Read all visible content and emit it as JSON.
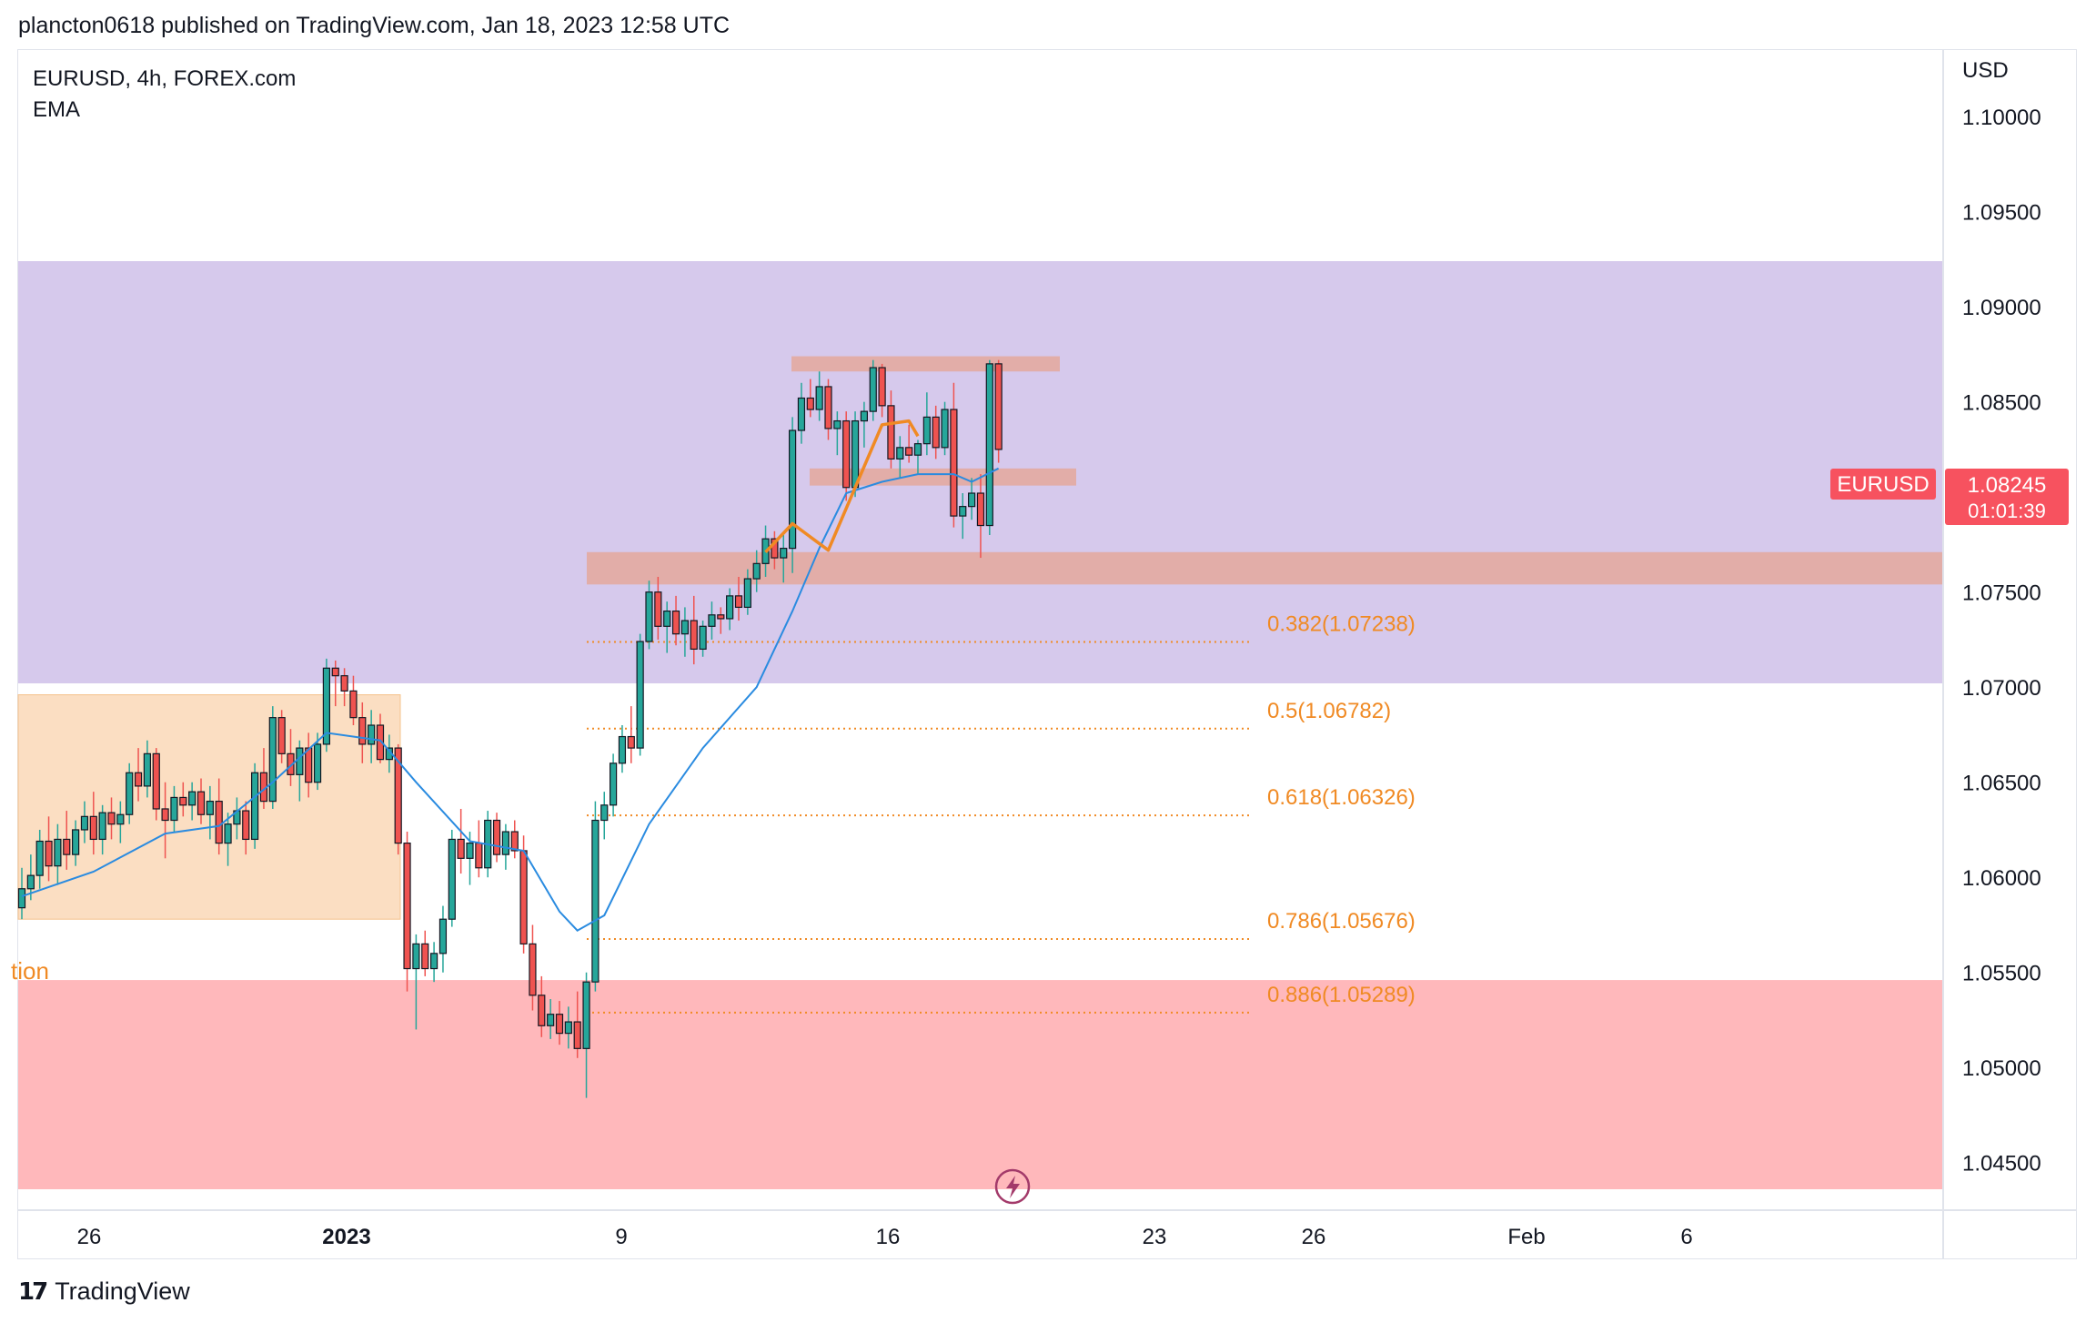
{
  "header": {
    "published": "plancton0618 published on TradingView.com, Jan 18, 2023 12:58 UTC"
  },
  "legend": {
    "symbol": "EURUSD, 4h, FOREX.com",
    "indicator": "EMA"
  },
  "price_axis": {
    "currency": "USD",
    "ticks": [
      "1.10000",
      "1.09500",
      "1.09000",
      "1.08500",
      "1.08000",
      "1.07500",
      "1.07000",
      "1.06500",
      "1.06000",
      "1.05500",
      "1.05000",
      "1.04500"
    ]
  },
  "time_axis": {
    "ticks": [
      {
        "label": "26",
        "bold": false
      },
      {
        "label": "2023",
        "bold": true
      },
      {
        "label": "9",
        "bold": false
      },
      {
        "label": "16",
        "bold": false
      },
      {
        "label": "23",
        "bold": false
      },
      {
        "label": "26",
        "bold": false
      },
      {
        "label": "Feb",
        "bold": false
      },
      {
        "label": "6",
        "bold": false
      }
    ]
  },
  "last_price": {
    "symbol_label": "EURUSD",
    "price": "1.08245",
    "countdown": "01:01:39",
    "color": "#f7525f"
  },
  "zone_label": "tion",
  "fib_levels": [
    {
      "label": "0.382(1.07238)",
      "value": 1.07238
    },
    {
      "label": "0.5(1.06782)",
      "value": 1.06782
    },
    {
      "label": "0.618(1.06326)",
      "value": 1.06326
    },
    {
      "label": "0.786(1.05676)",
      "value": 1.05676
    },
    {
      "label": "0.886(1.05289)",
      "value": 1.05289
    }
  ],
  "colors": {
    "up": "#26a69a",
    "down": "#ef5350",
    "ema": "#2a8be0",
    "purple_zone": "#d6c9ec",
    "red_zone": "#ffb8bb",
    "orange_zone": "#fbdcbf",
    "fib": "#f08a24",
    "salmon_zone": "#e5a697"
  },
  "footer": {
    "logo_mark": "17",
    "brand": "TradingView"
  },
  "chart_data": {
    "type": "candlestick",
    "symbol": "EURUSD",
    "timeframe": "4h",
    "exchange": "FOREX.com",
    "ylim": [
      1.0425,
      1.1035
    ],
    "x_ticks": [
      "26",
      "2023",
      "9",
      "16",
      "23",
      "26",
      "Feb",
      "6"
    ],
    "zones": [
      {
        "kind": "purple",
        "from": 1.0702,
        "to": 1.0924
      },
      {
        "kind": "red",
        "from": 1.0436,
        "to": 1.0546
      },
      {
        "kind": "orange",
        "from": 1.0578,
        "to": 1.0696
      },
      {
        "kind": "salmon",
        "from": 1.0754,
        "to": 1.0771
      },
      {
        "kind": "salmon-small",
        "from": 1.0866,
        "to": 1.0874
      },
      {
        "kind": "salmon-small",
        "from": 1.0806,
        "to": 1.0815
      }
    ],
    "last_price": 1.08245,
    "candles": [
      [
        1.0584,
        1.0605,
        1.0578,
        1.0594
      ],
      [
        1.0594,
        1.0612,
        1.0588,
        1.0601
      ],
      [
        1.0601,
        1.0625,
        1.0594,
        1.0619
      ],
      [
        1.0619,
        1.0632,
        1.0598,
        1.0606
      ],
      [
        1.0606,
        1.0628,
        1.0596,
        1.062
      ],
      [
        1.062,
        1.0635,
        1.0604,
        1.0612
      ],
      [
        1.0612,
        1.063,
        1.0606,
        1.0625
      ],
      [
        1.0625,
        1.064,
        1.0618,
        1.0632
      ],
      [
        1.0632,
        1.0645,
        1.0612,
        1.062
      ],
      [
        1.062,
        1.0638,
        1.0612,
        1.0634
      ],
      [
        1.0634,
        1.0642,
        1.062,
        1.0628
      ],
      [
        1.0628,
        1.064,
        1.0618,
        1.0633
      ],
      [
        1.0633,
        1.066,
        1.0628,
        1.0655
      ],
      [
        1.0655,
        1.0668,
        1.064,
        1.0648
      ],
      [
        1.0648,
        1.0672,
        1.0642,
        1.0665
      ],
      [
        1.0665,
        1.0668,
        1.063,
        1.0636
      ],
      [
        1.0636,
        1.065,
        1.061,
        1.063
      ],
      [
        1.063,
        1.0648,
        1.0624,
        1.0642
      ],
      [
        1.0642,
        1.065,
        1.0632,
        1.0638
      ],
      [
        1.0638,
        1.065,
        1.063,
        1.0645
      ],
      [
        1.0645,
        1.0652,
        1.0628,
        1.0633
      ],
      [
        1.0633,
        1.0648,
        1.062,
        1.064
      ],
      [
        1.064,
        1.0652,
        1.0612,
        1.0618
      ],
      [
        1.0618,
        1.0634,
        1.0606,
        1.0628
      ],
      [
        1.0628,
        1.0642,
        1.062,
        1.0635
      ],
      [
        1.0635,
        1.064,
        1.0612,
        1.062
      ],
      [
        1.062,
        1.066,
        1.0615,
        1.0655
      ],
      [
        1.0655,
        1.0668,
        1.0636,
        1.064
      ],
      [
        1.064,
        1.069,
        1.0636,
        1.0684
      ],
      [
        1.0684,
        1.0688,
        1.066,
        1.0665
      ],
      [
        1.0665,
        1.0678,
        1.0648,
        1.0654
      ],
      [
        1.0654,
        1.0672,
        1.064,
        1.0668
      ],
      [
        1.0668,
        1.0676,
        1.0642,
        1.065
      ],
      [
        1.065,
        1.0676,
        1.0646,
        1.067
      ],
      [
        1.067,
        1.0715,
        1.0666,
        1.071
      ],
      [
        1.071,
        1.0714,
        1.069,
        1.0706
      ],
      [
        1.0706,
        1.071,
        1.069,
        1.0698
      ],
      [
        1.0698,
        1.0706,
        1.068,
        1.0684
      ],
      [
        1.0684,
        1.0692,
        1.066,
        1.067
      ],
      [
        1.067,
        1.0688,
        1.066,
        1.068
      ],
      [
        1.068,
        1.0686,
        1.066,
        1.0662
      ],
      [
        1.0662,
        1.0675,
        1.0655,
        1.0668
      ],
      [
        1.0668,
        1.067,
        1.0612,
        1.0618
      ],
      [
        1.0618,
        1.0624,
        1.054,
        1.0552
      ],
      [
        1.0552,
        1.057,
        1.052,
        1.0565
      ],
      [
        1.0565,
        1.0572,
        1.0548,
        1.0552
      ],
      [
        1.0552,
        1.0566,
        1.0545,
        1.056
      ],
      [
        1.056,
        1.0585,
        1.055,
        1.0578
      ],
      [
        1.0578,
        1.0625,
        1.0574,
        1.062
      ],
      [
        1.062,
        1.0636,
        1.0602,
        1.061
      ],
      [
        1.061,
        1.0624,
        1.0596,
        1.0618
      ],
      [
        1.0618,
        1.063,
        1.06,
        1.0605
      ],
      [
        1.0605,
        1.0635,
        1.06,
        1.063
      ],
      [
        1.063,
        1.0634,
        1.0608,
        1.0612
      ],
      [
        1.0612,
        1.0628,
        1.0604,
        1.0624
      ],
      [
        1.0624,
        1.063,
        1.061,
        1.0614
      ],
      [
        1.0614,
        1.0622,
        1.056,
        1.0565
      ],
      [
        1.0565,
        1.0575,
        1.053,
        1.0538
      ],
      [
        1.0538,
        1.0548,
        1.0516,
        1.0522
      ],
      [
        1.0522,
        1.0536,
        1.0515,
        1.0528
      ],
      [
        1.0528,
        1.0535,
        1.0512,
        1.0518
      ],
      [
        1.0518,
        1.0532,
        1.051,
        1.0524
      ],
      [
        1.0524,
        1.054,
        1.0505,
        1.051
      ],
      [
        1.051,
        1.055,
        1.0484,
        1.0545
      ],
      [
        1.0545,
        1.064,
        1.054,
        1.063
      ],
      [
        1.063,
        1.0645,
        1.062,
        1.0638
      ],
      [
        1.0638,
        1.0665,
        1.0632,
        1.066
      ],
      [
        1.066,
        1.068,
        1.0655,
        1.0674
      ],
      [
        1.0674,
        1.069,
        1.066,
        1.0668
      ],
      [
        1.0668,
        1.0728,
        1.0664,
        1.0724
      ],
      [
        1.0724,
        1.0756,
        1.072,
        1.075
      ],
      [
        1.075,
        1.0758,
        1.0725,
        1.0732
      ],
      [
        1.0732,
        1.0745,
        1.0718,
        1.074
      ],
      [
        1.074,
        1.0748,
        1.0722,
        1.0728
      ],
      [
        1.0728,
        1.0742,
        1.0716,
        1.0735
      ],
      [
        1.0735,
        1.0748,
        1.0712,
        1.072
      ],
      [
        1.072,
        1.0735,
        1.0716,
        1.0732
      ],
      [
        1.0732,
        1.0745,
        1.0725,
        1.0738
      ],
      [
        1.0738,
        1.0742,
        1.0728,
        1.0736
      ],
      [
        1.0736,
        1.0752,
        1.073,
        1.0748
      ],
      [
        1.0748,
        1.0758,
        1.0735,
        1.0742
      ],
      [
        1.0742,
        1.0762,
        1.0738,
        1.0757
      ],
      [
        1.0757,
        1.0772,
        1.075,
        1.0765
      ],
      [
        1.0765,
        1.0785,
        1.0758,
        1.0778
      ],
      [
        1.0778,
        1.0782,
        1.0762,
        1.0768
      ],
      [
        1.0768,
        1.078,
        1.0755,
        1.0773
      ],
      [
        1.0773,
        1.0842,
        1.076,
        1.0835
      ],
      [
        1.0835,
        1.086,
        1.0828,
        1.0852
      ],
      [
        1.0852,
        1.0862,
        1.0842,
        1.0846
      ],
      [
        1.0846,
        1.0866,
        1.084,
        1.0858
      ],
      [
        1.0858,
        1.0862,
        1.083,
        1.0836
      ],
      [
        1.0836,
        1.0845,
        1.0822,
        1.084
      ],
      [
        1.084,
        1.0845,
        1.0798,
        1.0805
      ],
      [
        1.0805,
        1.0845,
        1.08,
        1.084
      ],
      [
        1.084,
        1.085,
        1.0826,
        1.0845
      ],
      [
        1.0845,
        1.0872,
        1.084,
        1.0868
      ],
      [
        1.0868,
        1.087,
        1.0842,
        1.0848
      ],
      [
        1.0848,
        1.0856,
        1.0815,
        1.082
      ],
      [
        1.082,
        1.0832,
        1.081,
        1.0826
      ],
      [
        1.0826,
        1.0838,
        1.0818,
        1.0822
      ],
      [
        1.0822,
        1.083,
        1.0812,
        1.0828
      ],
      [
        1.0828,
        1.0855,
        1.0822,
        1.0842
      ],
      [
        1.0842,
        1.0848,
        1.082,
        1.0826
      ],
      [
        1.0826,
        1.085,
        1.0822,
        1.0846
      ],
      [
        1.0846,
        1.086,
        1.0784,
        1.079
      ],
      [
        1.079,
        1.0802,
        1.0778,
        1.0795
      ],
      [
        1.0795,
        1.081,
        1.0788,
        1.0802
      ],
      [
        1.0802,
        1.0812,
        1.0768,
        1.0785
      ],
      [
        1.0785,
        1.0872,
        1.078,
        1.087
      ],
      [
        1.087,
        1.0872,
        1.0818,
        1.0825
      ]
    ],
    "ema": [
      [
        0,
        1.059
      ],
      [
        8,
        1.0603
      ],
      [
        16,
        1.0623
      ],
      [
        22,
        1.0627
      ],
      [
        28,
        1.065
      ],
      [
        34,
        1.0676
      ],
      [
        40,
        1.0672
      ],
      [
        44,
        1.065
      ],
      [
        50,
        1.0619
      ],
      [
        56,
        1.0614
      ],
      [
        60,
        1.0582
      ],
      [
        62,
        1.0572
      ],
      [
        65,
        1.058
      ],
      [
        70,
        1.0628
      ],
      [
        76,
        1.0668
      ],
      [
        82,
        1.07
      ],
      [
        86,
        1.074
      ],
      [
        89,
        1.0773
      ],
      [
        92,
        1.0802
      ],
      [
        96,
        1.0808
      ],
      [
        100,
        1.0812
      ],
      [
        104,
        1.0812
      ],
      [
        106,
        1.0808
      ],
      [
        109,
        1.0815
      ]
    ],
    "annotations": [
      {
        "type": "polyline",
        "points": [
          [
            83,
            1.0771
          ],
          [
            86,
            1.0786
          ],
          [
            90,
            1.0772
          ],
          [
            96,
            1.0838
          ],
          [
            99,
            1.084
          ],
          [
            100,
            1.0832
          ]
        ]
      }
    ]
  }
}
